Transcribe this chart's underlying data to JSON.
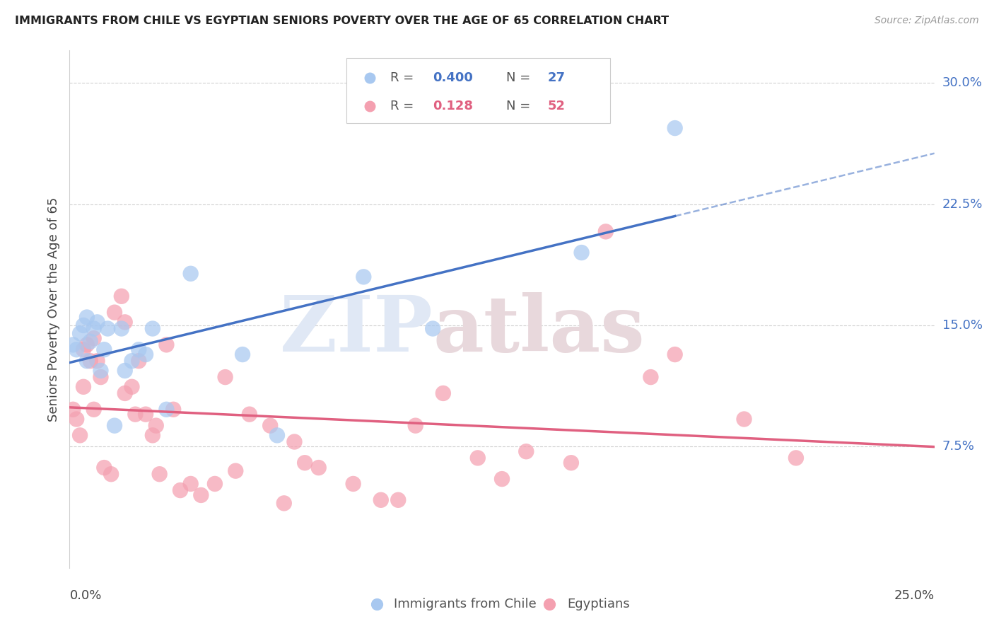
{
  "title": "IMMIGRANTS FROM CHILE VS EGYPTIAN SENIORS POVERTY OVER THE AGE OF 65 CORRELATION CHART",
  "source": "Source: ZipAtlas.com",
  "ylabel": "Seniors Poverty Over the Age of 65",
  "xlim": [
    0.0,
    0.25
  ],
  "ylim": [
    0.0,
    0.32
  ],
  "yticks": [
    0.075,
    0.15,
    0.225,
    0.3
  ],
  "ytick_labels": [
    "7.5%",
    "15.0%",
    "22.5%",
    "30.0%"
  ],
  "xtick_left": "0.0%",
  "xtick_right": "25.0%",
  "color_blue": "#A8C8F0",
  "color_pink": "#F4A0B0",
  "color_line_blue": "#4472C4",
  "color_line_pink": "#E06080",
  "color_grid": "#D0D0D0",
  "watermark_zip": "ZIP",
  "watermark_atlas": "atlas",
  "chile_x": [
    0.001,
    0.002,
    0.003,
    0.004,
    0.005,
    0.005,
    0.006,
    0.007,
    0.008,
    0.009,
    0.01,
    0.011,
    0.013,
    0.015,
    0.016,
    0.018,
    0.02,
    0.022,
    0.024,
    0.028,
    0.035,
    0.05,
    0.06,
    0.085,
    0.105,
    0.148,
    0.175
  ],
  "chile_y": [
    0.138,
    0.135,
    0.145,
    0.15,
    0.128,
    0.155,
    0.14,
    0.148,
    0.152,
    0.122,
    0.135,
    0.148,
    0.088,
    0.148,
    0.122,
    0.128,
    0.135,
    0.132,
    0.148,
    0.098,
    0.182,
    0.132,
    0.082,
    0.18,
    0.148,
    0.195,
    0.272
  ],
  "egypt_x": [
    0.001,
    0.002,
    0.003,
    0.004,
    0.004,
    0.005,
    0.006,
    0.007,
    0.007,
    0.008,
    0.009,
    0.01,
    0.012,
    0.013,
    0.015,
    0.016,
    0.016,
    0.018,
    0.019,
    0.02,
    0.022,
    0.024,
    0.025,
    0.026,
    0.028,
    0.03,
    0.032,
    0.035,
    0.038,
    0.042,
    0.045,
    0.048,
    0.052,
    0.058,
    0.062,
    0.065,
    0.068,
    0.072,
    0.082,
    0.09,
    0.095,
    0.1,
    0.108,
    0.118,
    0.125,
    0.132,
    0.145,
    0.155,
    0.168,
    0.175,
    0.195,
    0.21
  ],
  "egypt_y": [
    0.098,
    0.092,
    0.082,
    0.112,
    0.135,
    0.138,
    0.128,
    0.142,
    0.098,
    0.128,
    0.118,
    0.062,
    0.058,
    0.158,
    0.168,
    0.108,
    0.152,
    0.112,
    0.095,
    0.128,
    0.095,
    0.082,
    0.088,
    0.058,
    0.138,
    0.098,
    0.048,
    0.052,
    0.045,
    0.052,
    0.118,
    0.06,
    0.095,
    0.088,
    0.04,
    0.078,
    0.065,
    0.062,
    0.052,
    0.042,
    0.042,
    0.088,
    0.108,
    0.068,
    0.055,
    0.072,
    0.065,
    0.208,
    0.118,
    0.132,
    0.092,
    0.068
  ]
}
